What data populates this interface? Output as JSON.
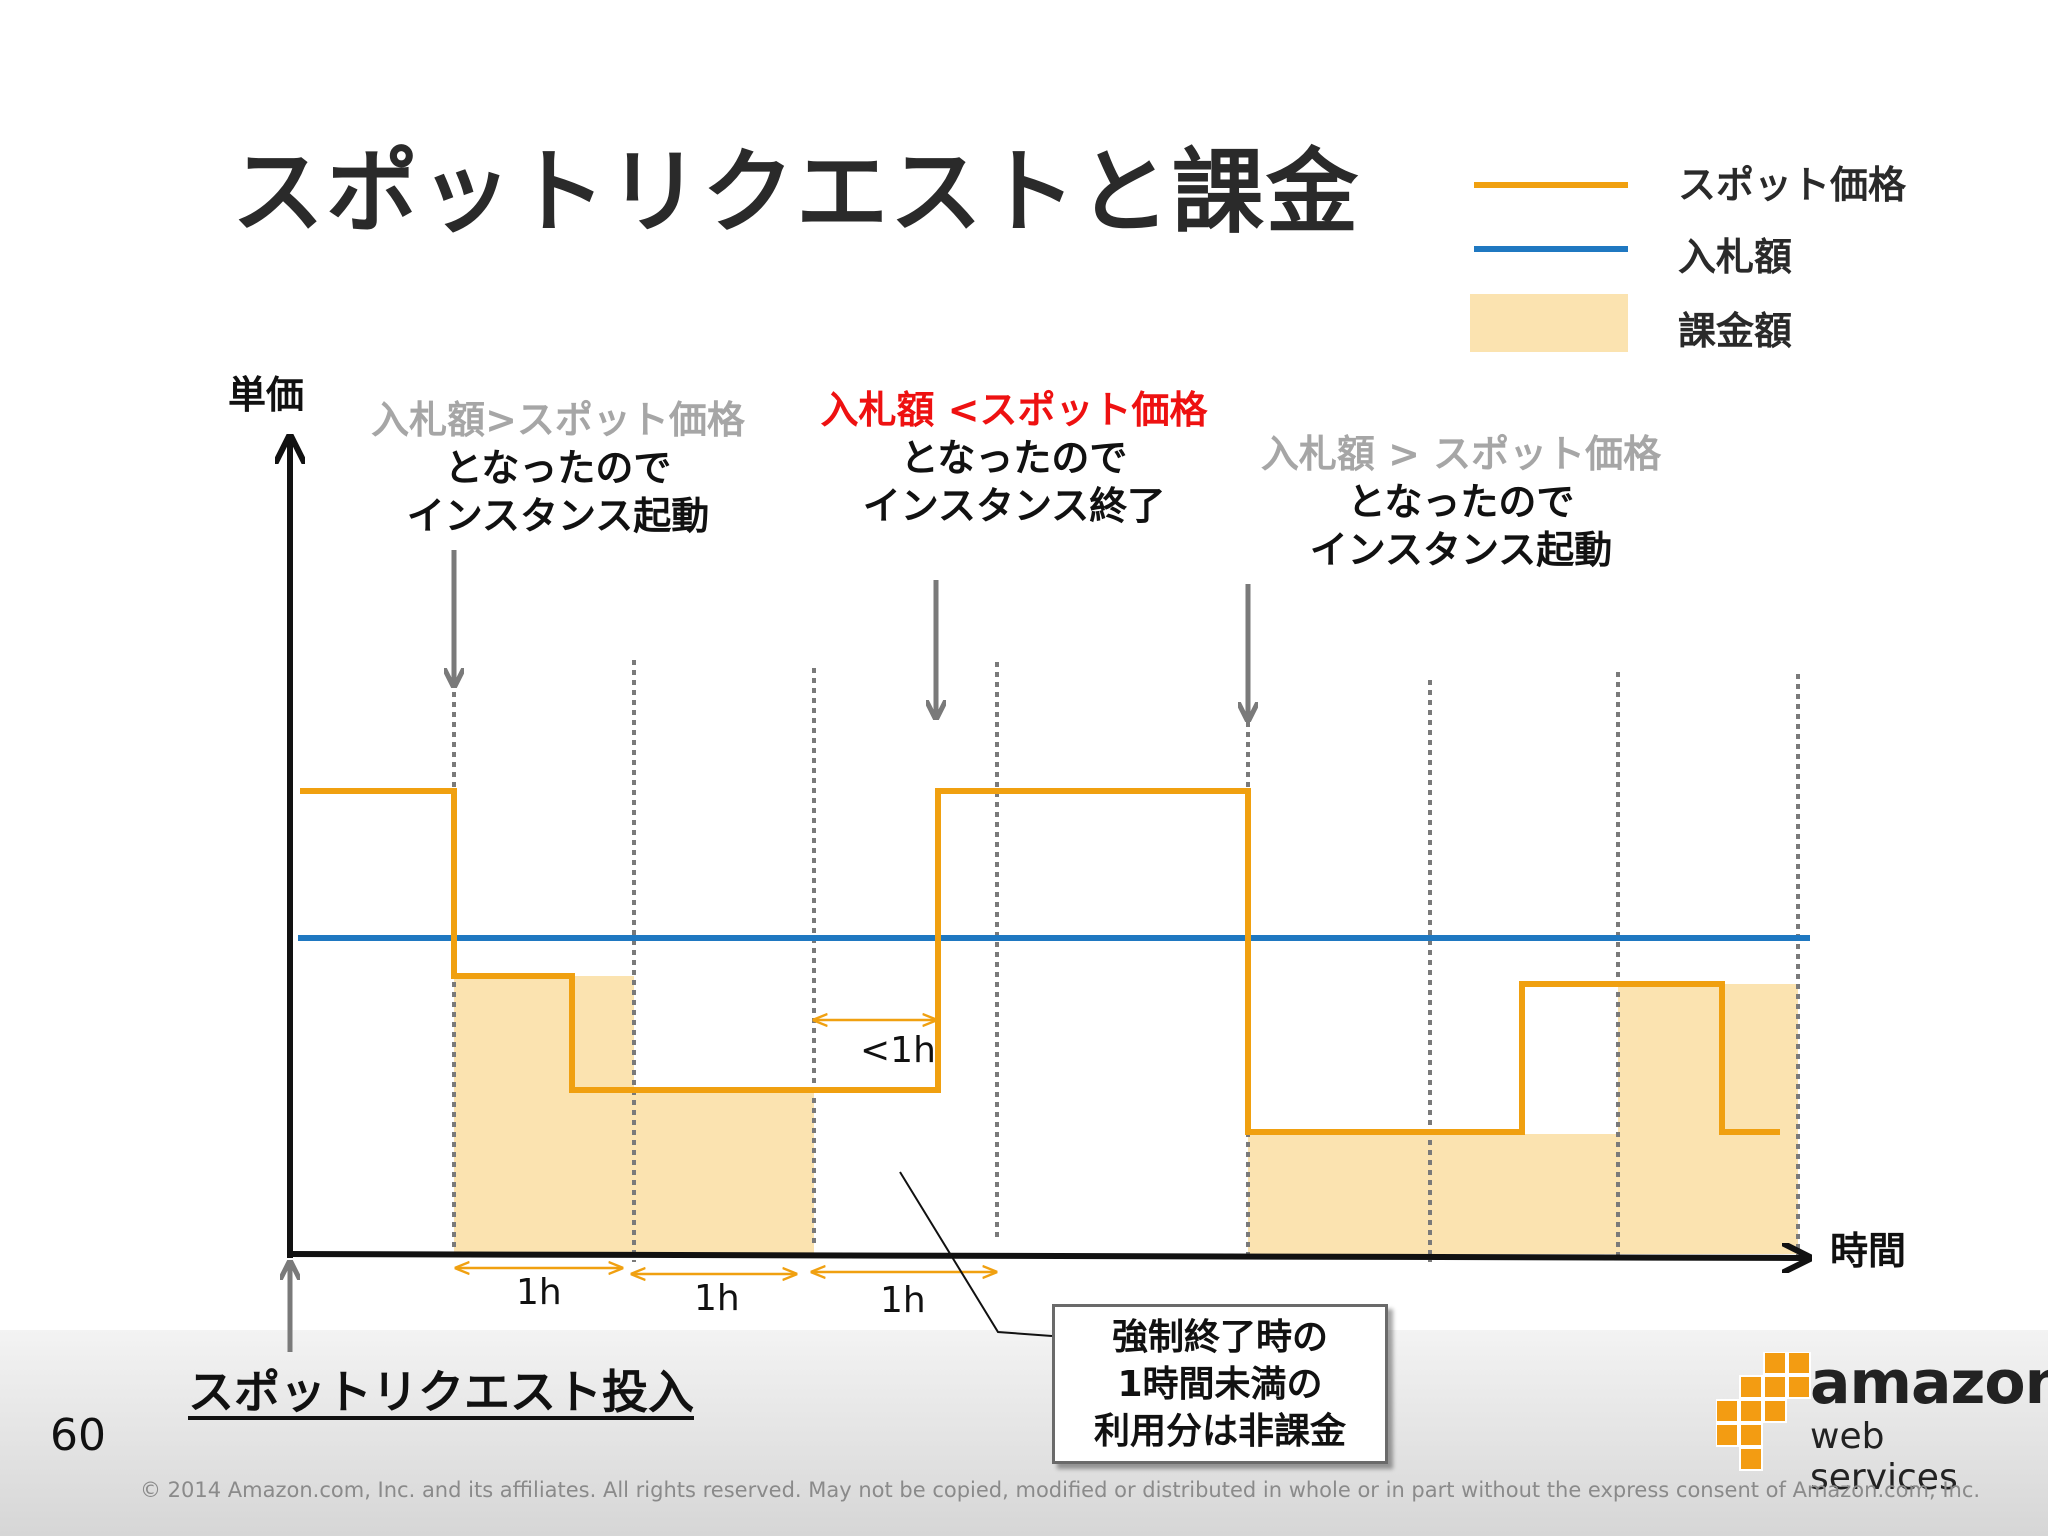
{
  "title": "スポットリクエストと課金",
  "legend": [
    {
      "label": "スポット価格",
      "color": "#f0a010"
    },
    {
      "label": "入札額",
      "color": "#1f78c1"
    },
    {
      "label": "課金額",
      "color": "#fbe3b0"
    }
  ],
  "axes": {
    "y_label": "単価",
    "x_label": "時間"
  },
  "notes": {
    "start": {
      "line1": "入札額>スポット価格",
      "line2": "となったので",
      "line3": "インスタンス起動"
    },
    "stop": {
      "line1": "入札額 <スポット価格",
      "line2": "となったので",
      "line3": "インスタンス終了"
    },
    "restart": {
      "line1": "入札額 > スポット価格",
      "line2": "となったので",
      "line3": "インスタンス起動"
    }
  },
  "dimensions": {
    "short": "<1h",
    "hour1": "1h",
    "hour2": "1h",
    "hour3": "1h"
  },
  "spot_request_label": "スポットリクエスト投入",
  "callout": {
    "line1": "強制終了時の",
    "line2": "1時間未満の",
    "line3": "利用分は非課金"
  },
  "page_number": "60",
  "copyright": "© 2014 Amazon.com, Inc. and its affiliates.  All rights reserved.  May not be copied, modified or distributed in whole or in part without the express consent of Amazon.com, Inc.",
  "logo": {
    "word1": "amazon",
    "word2": "web services"
  },
  "colors": {
    "spot_price": "#f0a010",
    "bid": "#1f78c1",
    "charge": "#fbe3b0",
    "arrow": "#7a7a7a",
    "axis": "#111111"
  }
}
